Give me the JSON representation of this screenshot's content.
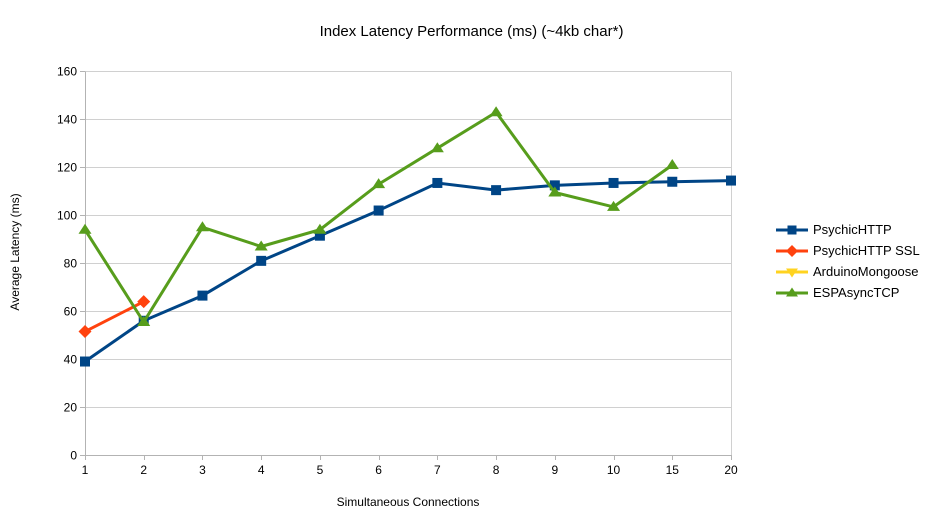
{
  "chart_data": {
    "type": "line",
    "title": "Index Latency Performance (ms) (~4kb char*)",
    "x_axis": {
      "title": "Simultaneous Connections"
    },
    "y_axis": {
      "title": "Average Latency (ms)",
      "min": 0,
      "max": 160,
      "step": 20
    },
    "categories": [
      "1",
      "2",
      "3",
      "4",
      "5",
      "6",
      "7",
      "8",
      "9",
      "10",
      "15",
      "20"
    ],
    "grid": "horizontal",
    "legend_position": "right",
    "series": [
      {
        "name": "PsychicHTTP",
        "color": "#004586",
        "marker": "square",
        "values": [
          39,
          56,
          66.5,
          81,
          91.5,
          102,
          113.5,
          110.5,
          112.5,
          113.5,
          114,
          114.5
        ]
      },
      {
        "name": "PsychicHTTP SSL",
        "color": "#FF420E",
        "marker": "diamond",
        "values": [
          51.5,
          64,
          null,
          null,
          null,
          null,
          null,
          null,
          null,
          null,
          null,
          null
        ]
      },
      {
        "name": "ArduinoMongoose",
        "color": "#FFD320",
        "marker": "triangle-down",
        "values": [
          null,
          null,
          null,
          null,
          null,
          null,
          null,
          null,
          null,
          null,
          null,
          null
        ]
      },
      {
        "name": "ESPAsyncTCP",
        "color": "#579D1C",
        "marker": "triangle-up",
        "values": [
          94,
          55.5,
          95,
          87,
          94,
          113,
          128,
          143,
          109.5,
          103.5,
          121,
          null
        ]
      }
    ]
  }
}
